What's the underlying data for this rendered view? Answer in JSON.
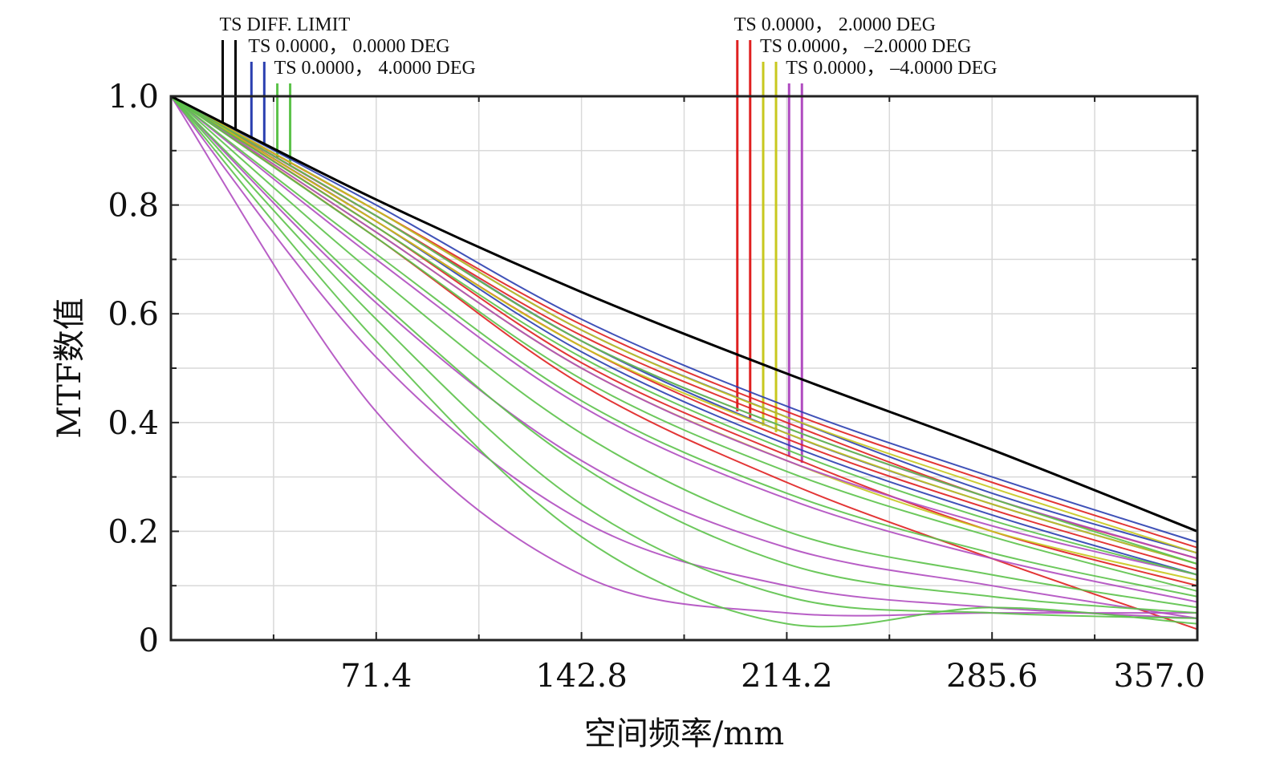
{
  "chart_data": {
    "type": "line",
    "title": "",
    "xlabel": "空间频率/mm",
    "ylabel": "MTF数值",
    "xlim": [
      0,
      357.0
    ],
    "ylim": [
      0,
      1.0
    ],
    "x_ticks": [
      {
        "value": 71.4,
        "label": "71.4"
      },
      {
        "value": 142.8,
        "label": "142.8"
      },
      {
        "value": 214.2,
        "label": "214.2"
      },
      {
        "value": 285.6,
        "label": "285.6"
      },
      {
        "value": 357.0,
        "label": "357.0"
      }
    ],
    "y_ticks": [
      {
        "value": 0,
        "label": "0"
      },
      {
        "value": 0.2,
        "label": "0.2"
      },
      {
        "value": 0.4,
        "label": "0.4"
      },
      {
        "value": 0.6,
        "label": "0.6"
      },
      {
        "value": 0.8,
        "label": "0.8"
      },
      {
        "value": 1.0,
        "label": "1.0"
      }
    ],
    "grid": true,
    "legend_entries": [
      {
        "text": "TS  DIFF. LIMIT",
        "color": "#000000",
        "x_at": 18
      },
      {
        "text": "TS 0.0000， 0.0000  DEG",
        "color": "#2b3fb0",
        "x_at": 28
      },
      {
        "text": "TS 0.0000， 4.0000  DEG",
        "color": "#5cc24a",
        "x_at": 37
      },
      {
        "text": "TS 0.0000， 2.0000  DEG",
        "color": "#e02020",
        "x_at": 197
      },
      {
        "text": "TS 0.0000， –2.0000  DEG",
        "color": "#c8c81e",
        "x_at": 206
      },
      {
        "text": "TS 0.0000， –4.0000  DEG",
        "color": "#b04cc0",
        "x_at": 215
      }
    ],
    "series": [
      {
        "color": "#000000",
        "x": [
          0,
          71.4,
          142.8,
          214.2,
          285.6,
          357.0
        ],
        "y": [
          1.0,
          0.81,
          0.64,
          0.49,
          0.35,
          0.2
        ]
      },
      {
        "color": "#2b3fb0",
        "x": [
          0,
          71.4,
          142.8,
          214.2,
          285.6,
          357.0
        ],
        "y": [
          1.0,
          0.8,
          0.59,
          0.43,
          0.3,
          0.18
        ]
      },
      {
        "color": "#2b3fb0",
        "x": [
          0,
          71.4,
          142.8,
          214.2,
          285.6,
          357.0
        ],
        "y": [
          1.0,
          0.79,
          0.57,
          0.41,
          0.27,
          0.16
        ]
      },
      {
        "color": "#2b3fb0",
        "x": [
          0,
          71.4,
          142.8,
          214.2,
          285.6,
          357.0
        ],
        "y": [
          1.0,
          0.78,
          0.55,
          0.38,
          0.25,
          0.14
        ]
      },
      {
        "color": "#2b3fb0",
        "x": [
          0,
          71.4,
          142.8,
          214.2,
          285.6,
          357.0
        ],
        "y": [
          1.0,
          0.77,
          0.53,
          0.36,
          0.23,
          0.12
        ]
      },
      {
        "color": "#e02020",
        "x": [
          0,
          71.4,
          142.8,
          214.2,
          285.6,
          357.0
        ],
        "y": [
          1.0,
          0.79,
          0.58,
          0.42,
          0.29,
          0.17
        ]
      },
      {
        "color": "#e02020",
        "x": [
          0,
          71.4,
          142.8,
          214.2,
          285.6,
          357.0
        ],
        "y": [
          1.0,
          0.78,
          0.56,
          0.4,
          0.26,
          0.15
        ]
      },
      {
        "color": "#e02020",
        "x": [
          0,
          71.4,
          142.8,
          214.2,
          285.6,
          357.0
        ],
        "y": [
          1.0,
          0.77,
          0.54,
          0.37,
          0.24,
          0.13
        ]
      },
      {
        "color": "#e02020",
        "x": [
          0,
          71.4,
          142.8,
          214.2,
          285.6,
          357.0
        ],
        "y": [
          1.0,
          0.76,
          0.51,
          0.34,
          0.2,
          0.1
        ]
      },
      {
        "color": "#e02020",
        "x": [
          0,
          71.4,
          142.8,
          214.2,
          285.6,
          357.0
        ],
        "y": [
          1.0,
          0.74,
          0.47,
          0.29,
          0.15,
          0.02
        ]
      },
      {
        "color": "#c8c81e",
        "x": [
          0,
          71.4,
          142.8,
          214.2,
          285.6,
          357.0
        ],
        "y": [
          1.0,
          0.79,
          0.57,
          0.41,
          0.28,
          0.16
        ]
      },
      {
        "color": "#c8c81e",
        "x": [
          0,
          71.4,
          142.8,
          214.2,
          285.6,
          357.0
        ],
        "y": [
          1.0,
          0.77,
          0.54,
          0.38,
          0.25,
          0.14
        ]
      },
      {
        "color": "#c8c81e",
        "x": [
          0,
          71.4,
          142.8,
          214.2,
          285.6,
          357.0
        ],
        "y": [
          1.0,
          0.75,
          0.5,
          0.33,
          0.2,
          0.11
        ]
      },
      {
        "color": "#b04cc0",
        "x": [
          0,
          71.4,
          142.8,
          214.2,
          285.6,
          357.0
        ],
        "y": [
          1.0,
          0.78,
          0.55,
          0.39,
          0.26,
          0.15
        ]
      },
      {
        "color": "#b04cc0",
        "x": [
          0,
          71.4,
          142.8,
          214.2,
          285.6,
          357.0
        ],
        "y": [
          1.0,
          0.75,
          0.5,
          0.33,
          0.21,
          0.12
        ]
      },
      {
        "color": "#b04cc0",
        "x": [
          0,
          71.4,
          142.8,
          214.2,
          285.6,
          357.0
        ],
        "y": [
          1.0,
          0.7,
          0.43,
          0.26,
          0.15,
          0.07
        ]
      },
      {
        "color": "#b04cc0",
        "x": [
          0,
          71.4,
          142.8,
          214.2,
          285.6,
          357.0
        ],
        "y": [
          1.0,
          0.62,
          0.33,
          0.17,
          0.1,
          0.04
        ]
      },
      {
        "color": "#b04cc0",
        "x": [
          0,
          71.4,
          142.8,
          214.2,
          285.6,
          357.0
        ],
        "y": [
          1.0,
          0.52,
          0.22,
          0.1,
          0.06,
          0.04
        ]
      },
      {
        "color": "#b04cc0",
        "x": [
          0,
          71.4,
          142.8,
          214.2,
          285.6,
          357.0
        ],
        "y": [
          1.0,
          0.42,
          0.12,
          0.05,
          0.05,
          0.05
        ]
      },
      {
        "color": "#5cc24a",
        "x": [
          0,
          71.4,
          142.8,
          214.2,
          285.6,
          357.0
        ],
        "y": [
          1.0,
          0.78,
          0.55,
          0.39,
          0.26,
          0.14
        ]
      },
      {
        "color": "#5cc24a",
        "x": [
          0,
          71.4,
          142.8,
          214.2,
          285.6,
          357.0
        ],
        "y": [
          1.0,
          0.76,
          0.52,
          0.35,
          0.22,
          0.12
        ]
      },
      {
        "color": "#5cc24a",
        "x": [
          0,
          71.4,
          142.8,
          214.2,
          285.6,
          357.0
        ],
        "y": [
          1.0,
          0.74,
          0.48,
          0.31,
          0.19,
          0.09
        ]
      },
      {
        "color": "#5cc24a",
        "x": [
          0,
          71.4,
          142.8,
          214.2,
          285.6,
          357.0
        ],
        "y": [
          1.0,
          0.71,
          0.44,
          0.27,
          0.16,
          0.08
        ]
      },
      {
        "color": "#5cc24a",
        "x": [
          0,
          71.4,
          142.8,
          214.2,
          285.6,
          357.0
        ],
        "y": [
          1.0,
          0.67,
          0.38,
          0.2,
          0.12,
          0.06
        ]
      },
      {
        "color": "#5cc24a",
        "x": [
          0,
          71.4,
          142.8,
          214.2,
          285.6,
          357.0
        ],
        "y": [
          1.0,
          0.63,
          0.32,
          0.14,
          0.08,
          0.05
        ]
      },
      {
        "color": "#5cc24a",
        "x": [
          0,
          71.4,
          142.8,
          214.2,
          285.6,
          357.0
        ],
        "y": [
          1.0,
          0.59,
          0.25,
          0.08,
          0.05,
          0.04
        ]
      },
      {
        "color": "#5cc24a",
        "x": [
          0,
          71.4,
          142.8,
          214.2,
          285.6,
          357.0
        ],
        "y": [
          1.0,
          0.55,
          0.19,
          0.03,
          0.06,
          0.03
        ]
      }
    ]
  }
}
